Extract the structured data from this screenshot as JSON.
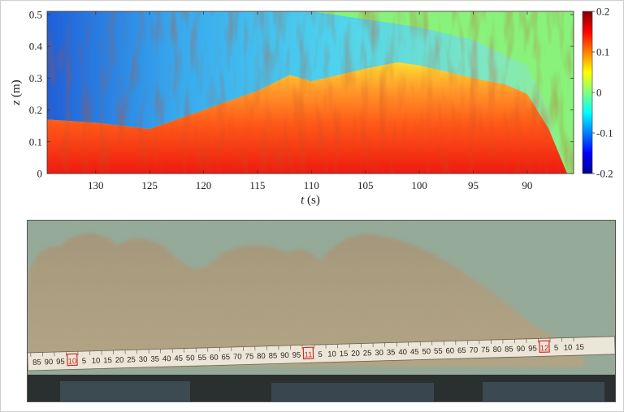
{
  "chart_data": {
    "type": "heatmap",
    "title": "",
    "xlabel": "t (s)",
    "xlabel_var": "t",
    "xlabel_unit": "(s)",
    "ylabel": "z (m)",
    "ylabel_var": "z",
    "ylabel_unit": "(m)",
    "xlim": [
      134.5,
      85.7
    ],
    "ylim": [
      0,
      0.51
    ],
    "x_ticks": [
      130,
      125,
      120,
      115,
      110,
      105,
      100,
      95,
      90
    ],
    "y_ticks": [
      0,
      0.1,
      0.2,
      0.3,
      0.4,
      0.5
    ],
    "y_tick_labels": [
      "0",
      "0.1",
      "0.2",
      "0.3",
      "0.4",
      "0.5"
    ],
    "colorbar": {
      "colormap": "jet",
      "range": [
        -0.2,
        0.2
      ],
      "ticks": [
        0.2,
        0.1,
        0,
        -0.1,
        -0.2
      ],
      "tick_labels": [
        "0.2",
        "0.1",
        "0",
        "-0.1",
        "-0.2"
      ]
    },
    "current_head_t": 86.3,
    "interface_height_by_t": {
      "t": [
        134.5,
        130,
        125,
        120,
        115,
        112,
        110,
        105,
        102,
        100,
        95,
        92,
        90,
        88,
        86.3
      ],
      "z": [
        0.17,
        0.16,
        0.14,
        0.2,
        0.26,
        0.31,
        0.29,
        0.33,
        0.35,
        0.34,
        0.3,
        0.28,
        0.25,
        0.14,
        0.0
      ]
    },
    "outer_edge_height_by_t": {
      "t": [
        134.5,
        120,
        110,
        100,
        95,
        90,
        88,
        86.3
      ],
      "z": [
        0.51,
        0.51,
        0.51,
        0.46,
        0.42,
        0.34,
        0.2,
        0.0
      ]
    }
  },
  "photo": {
    "description_icon": "gravity-current-photo",
    "ruler_labels": [
      "85",
      "90",
      "95",
      "10",
      "5",
      "10",
      "15",
      "20",
      "25",
      "30",
      "35",
      "40",
      "45",
      "50",
      "55",
      "60",
      "65",
      "70",
      "75",
      "80",
      "85",
      "90",
      "95",
      "11",
      "5",
      "10",
      "15",
      "20",
      "25",
      "30",
      "35",
      "40",
      "45",
      "50",
      "55",
      "60",
      "65",
      "70",
      "75",
      "80",
      "85",
      "90",
      "95",
      "12",
      "5",
      "10",
      "15"
    ],
    "colors": {
      "water": "#93ab99",
      "sediment": "#a89a7d",
      "ruler": "#efe9dc",
      "ruler_marker": "#c8302a"
    }
  }
}
